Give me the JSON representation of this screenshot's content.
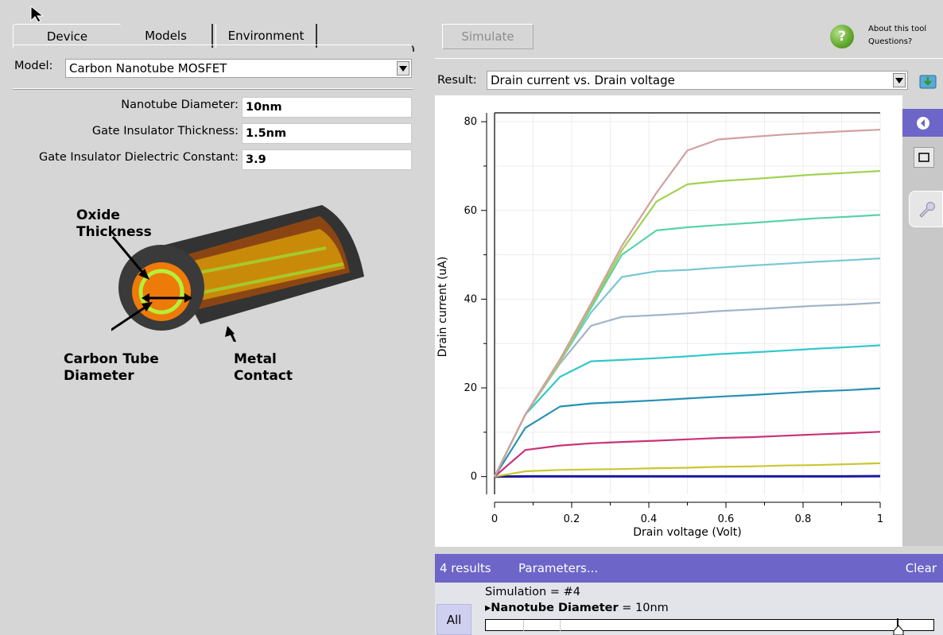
{
  "left_panel": {
    "tabs": [
      {
        "label": "Device",
        "active": true
      },
      {
        "label": "Models",
        "active": false
      },
      {
        "label": "Environment",
        "active": false
      }
    ],
    "model": {
      "label": "Model:",
      "value": "Carbon Nanotube MOSFET"
    },
    "fields": [
      {
        "label": "Nanotube Diameter:",
        "value": "10nm"
      },
      {
        "label": "Gate Insulator Thickness:",
        "value": "1.5nm"
      },
      {
        "label": "Gate Insulator Dielectric Constant:",
        "value": "3.9"
      }
    ],
    "diagram": {
      "oxide_label_1": "Oxide",
      "oxide_label_2": "Thickness",
      "tube_label_1": "Carbon Tube",
      "tube_label_2": "Diameter",
      "contact_label_1": "Metal",
      "contact_label_2": "Contact"
    }
  },
  "right_panel": {
    "simulate_label": "Simulate",
    "help_line1": "About this tool",
    "help_line2": "Questions?",
    "result": {
      "label": "Result:",
      "value": "Drain current vs. Drain voltage"
    },
    "results_bar": {
      "count": "4 results",
      "parameters": "Parameters...",
      "clear": "Clear"
    },
    "params": {
      "simulation": "Simulation = #4",
      "name": "Nanotube Diameter",
      "value_text": " = 10nm",
      "all_label": "All"
    },
    "colors": {
      "accent": "#6d65c7"
    }
  },
  "chart_data": {
    "type": "line",
    "xlabel": "Drain voltage (Volt)",
    "ylabel": "Drain current (uA)",
    "xlim": [
      0,
      1
    ],
    "ylim": [
      -4,
      82
    ],
    "x_ticks": [
      "0",
      "0.2",
      "0.4",
      "0.6",
      "0.8",
      "1"
    ],
    "y_ticks": [
      "0",
      "20",
      "40",
      "60",
      "80"
    ],
    "grid": true,
    "series": [
      {
        "color": "#1a1aa0",
        "points": [
          [
            0,
            0
          ],
          [
            0.1,
            0.05
          ],
          [
            0.2,
            0.05
          ],
          [
            0.3,
            0.05
          ],
          [
            0.4,
            0.05
          ],
          [
            0.5,
            0.05
          ],
          [
            0.6,
            0.05
          ],
          [
            0.7,
            0.05
          ],
          [
            0.8,
            0.05
          ],
          [
            0.9,
            0.05
          ],
          [
            1,
            0.1
          ]
        ]
      },
      {
        "color": "#c8c832",
        "points": [
          [
            0,
            0
          ],
          [
            0.08,
            1.2
          ],
          [
            0.17,
            1.5
          ],
          [
            0.25,
            1.6
          ],
          [
            0.33,
            1.7
          ],
          [
            0.42,
            1.9
          ],
          [
            0.5,
            2.0
          ],
          [
            0.58,
            2.2
          ],
          [
            0.67,
            2.3
          ],
          [
            0.75,
            2.5
          ],
          [
            0.83,
            2.6
          ],
          [
            0.92,
            2.8
          ],
          [
            1,
            3.0
          ]
        ]
      },
      {
        "color": "#c83278",
        "points": [
          [
            0,
            0
          ],
          [
            0.08,
            6
          ],
          [
            0.17,
            7
          ],
          [
            0.25,
            7.5
          ],
          [
            0.33,
            7.8
          ],
          [
            0.42,
            8.1
          ],
          [
            0.5,
            8.4
          ],
          [
            0.58,
            8.7
          ],
          [
            0.67,
            8.9
          ],
          [
            0.75,
            9.2
          ],
          [
            0.83,
            9.5
          ],
          [
            0.92,
            9.8
          ],
          [
            1,
            10.1
          ]
        ]
      },
      {
        "color": "#2890b4",
        "points": [
          [
            0,
            0
          ],
          [
            0.08,
            11
          ],
          [
            0.17,
            15.8
          ],
          [
            0.25,
            16.5
          ],
          [
            0.33,
            16.8
          ],
          [
            0.42,
            17.2
          ],
          [
            0.5,
            17.6
          ],
          [
            0.58,
            18.0
          ],
          [
            0.67,
            18.4
          ],
          [
            0.75,
            18.8
          ],
          [
            0.83,
            19.2
          ],
          [
            0.92,
            19.5
          ],
          [
            1,
            19.9
          ]
        ]
      },
      {
        "color": "#32c8c8",
        "points": [
          [
            0,
            0
          ],
          [
            0.08,
            14
          ],
          [
            0.17,
            22.5
          ],
          [
            0.25,
            26
          ],
          [
            0.33,
            26.3
          ],
          [
            0.42,
            26.7
          ],
          [
            0.5,
            27.1
          ],
          [
            0.58,
            27.6
          ],
          [
            0.67,
            28.0
          ],
          [
            0.75,
            28.4
          ],
          [
            0.83,
            28.8
          ],
          [
            0.92,
            29.2
          ],
          [
            1,
            29.6
          ]
        ]
      },
      {
        "color": "#a0b4c8",
        "points": [
          [
            0,
            0
          ],
          [
            0.08,
            14
          ],
          [
            0.17,
            25.5
          ],
          [
            0.25,
            34
          ],
          [
            0.33,
            36
          ],
          [
            0.42,
            36.4
          ],
          [
            0.5,
            36.8
          ],
          [
            0.58,
            37.3
          ],
          [
            0.67,
            37.7
          ],
          [
            0.75,
            38.1
          ],
          [
            0.83,
            38.5
          ],
          [
            0.92,
            38.8
          ],
          [
            1,
            39.2
          ]
        ]
      },
      {
        "color": "#78c8d2",
        "points": [
          [
            0,
            0
          ],
          [
            0.08,
            14
          ],
          [
            0.17,
            26
          ],
          [
            0.25,
            37
          ],
          [
            0.33,
            45
          ],
          [
            0.42,
            46.3
          ],
          [
            0.5,
            46.6
          ],
          [
            0.58,
            47.1
          ],
          [
            0.67,
            47.6
          ],
          [
            0.75,
            48.0
          ],
          [
            0.83,
            48.4
          ],
          [
            0.92,
            48.8
          ],
          [
            1,
            49.2
          ]
        ]
      },
      {
        "color": "#5ad2aa",
        "points": [
          [
            0,
            0
          ],
          [
            0.08,
            14
          ],
          [
            0.17,
            26
          ],
          [
            0.25,
            38
          ],
          [
            0.33,
            50
          ],
          [
            0.42,
            55.5
          ],
          [
            0.5,
            56.2
          ],
          [
            0.58,
            56.7
          ],
          [
            0.67,
            57.2
          ],
          [
            0.75,
            57.7
          ],
          [
            0.83,
            58.2
          ],
          [
            0.92,
            58.6
          ],
          [
            1,
            59.0
          ]
        ]
      },
      {
        "color": "#a0d250",
        "points": [
          [
            0,
            0
          ],
          [
            0.08,
            14
          ],
          [
            0.17,
            26
          ],
          [
            0.25,
            38.5
          ],
          [
            0.33,
            51
          ],
          [
            0.42,
            62
          ],
          [
            0.5,
            65.9
          ],
          [
            0.58,
            66.6
          ],
          [
            0.67,
            67.1
          ],
          [
            0.75,
            67.6
          ],
          [
            0.83,
            68.1
          ],
          [
            0.92,
            68.5
          ],
          [
            1,
            68.9
          ]
        ]
      },
      {
        "color": "#d2a0a0",
        "points": [
          [
            0,
            0
          ],
          [
            0.08,
            14
          ],
          [
            0.17,
            26.5
          ],
          [
            0.25,
            39
          ],
          [
            0.33,
            52
          ],
          [
            0.42,
            64
          ],
          [
            0.5,
            73.5
          ],
          [
            0.58,
            76
          ],
          [
            0.67,
            76.6
          ],
          [
            0.75,
            77.1
          ],
          [
            0.83,
            77.5
          ],
          [
            0.92,
            77.9
          ],
          [
            1,
            78.2
          ]
        ]
      }
    ]
  }
}
